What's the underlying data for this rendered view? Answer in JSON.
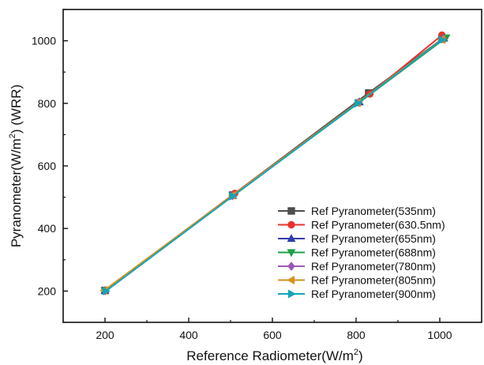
{
  "chart_data": {
    "type": "line",
    "xlabel_main": "Reference Radiometer(W/m",
    "xlabel_sup": "2",
    "xlabel_end": ")",
    "ylabel_main": "Pyranometer(W/m",
    "ylabel_sup": "2",
    "ylabel_end": ") (WRR)",
    "xlim": [
      100,
      1100
    ],
    "ylim": [
      100,
      1100
    ],
    "xticks": [
      200,
      400,
      600,
      800,
      1000
    ],
    "yticks": [
      200,
      400,
      600,
      800,
      1000
    ],
    "grid": false,
    "legend_position": "lower-right",
    "series": [
      {
        "name": "Ref Pyranometer(535nm)",
        "color": "#4d4d4d",
        "marker": "square",
        "x": [
          200,
          505,
          830,
          1005
        ],
        "y": [
          202,
          507,
          833,
          1005
        ]
      },
      {
        "name": "Ref Pyranometer(630.5nm)",
        "color": "#e8322e",
        "marker": "circle",
        "x": [
          200,
          510,
          833,
          1005
        ],
        "y": [
          202,
          512,
          830,
          1018
        ]
      },
      {
        "name": "Ref Pyranometer(655nm)",
        "color": "#2f3fa8",
        "marker": "triangle-up",
        "x": [
          200,
          505,
          808,
          1010
        ],
        "y": [
          201,
          505,
          804,
          1008
        ]
      },
      {
        "name": "Ref Pyranometer(688nm)",
        "color": "#1fa046",
        "marker": "triangle-down",
        "x": [
          200,
          505,
          808,
          1015
        ],
        "y": [
          201,
          505,
          803,
          1010
        ]
      },
      {
        "name": "Ref Pyranometer(780nm)",
        "color": "#9b59b6",
        "marker": "diamond",
        "x": [
          200,
          505,
          806,
          1008
        ],
        "y": [
          201,
          505,
          803,
          1006
        ]
      },
      {
        "name": "Ref Pyranometer(805nm)",
        "color": "#d4921c",
        "marker": "triangle-left",
        "x": [
          198,
          505,
          804,
          1005
        ],
        "y": [
          202,
          506,
          802,
          1004
        ]
      },
      {
        "name": "Ref Pyranometer(900nm)",
        "color": "#16a3b8",
        "marker": "triangle-right",
        "x": [
          202,
          505,
          804,
          1005
        ],
        "y": [
          200,
          503,
          800,
          1003
        ]
      }
    ]
  }
}
